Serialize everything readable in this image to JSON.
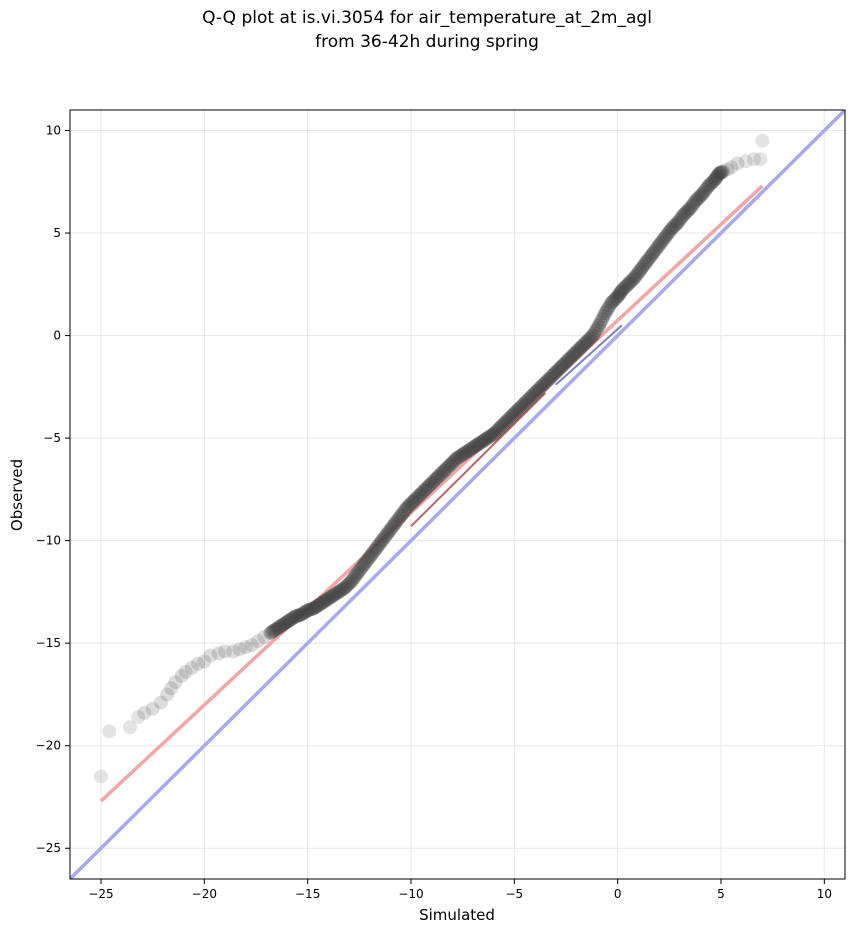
{
  "chart_data": {
    "type": "scatter",
    "title": "Q-Q plot at is.vi.3054 for air_temperature_at_2m_agl",
    "subtitle": "from 36-42h during spring",
    "xlabel": "Simulated",
    "ylabel": "Observed",
    "xlim": [
      -26.5,
      11
    ],
    "ylim": [
      -26.5,
      11
    ],
    "xticks": [
      -25,
      -20,
      -15,
      -10,
      -5,
      0,
      5,
      10
    ],
    "yticks": [
      -25,
      -20,
      -15,
      -10,
      -5,
      0,
      5,
      10
    ],
    "grid": true,
    "colors": {
      "points": "#404040",
      "fit_line": "#f4a6a6",
      "identity_line": "#a8a8f4",
      "dense_fit": "#8b0000",
      "dense_blue": "#00008b"
    },
    "quantile_points": {
      "x": [
        -25.0,
        -24.6,
        -23.6,
        -23.2,
        -22.9,
        -22.5,
        -22.1,
        -21.8,
        -21.6,
        -21.4,
        -21.1,
        -20.9,
        -20.6,
        -20.3,
        -20.0,
        -19.7,
        -19.3,
        -19.0,
        -18.6,
        -18.3,
        -18.0,
        -17.7,
        -17.4,
        -17.1,
        -16.8,
        -16.5,
        -16.2,
        -15.9,
        -15.6,
        -15.3,
        -15.0,
        -14.7,
        -14.4,
        -14.1,
        -13.8,
        -13.5,
        -13.2,
        -12.9,
        -12.6,
        -12.3,
        -12.0,
        -11.7,
        -11.4,
        -11.1,
        -10.8,
        -10.5,
        -10.2,
        -9.9,
        -9.6,
        -9.3,
        -9.0,
        -8.7,
        -8.4,
        -8.1,
        -7.8,
        -7.5,
        -7.2,
        -6.9,
        -6.6,
        -6.3,
        -6.0,
        -5.7,
        -5.4,
        -5.1,
        -4.8,
        -4.5,
        -4.2,
        -3.9,
        -3.6,
        -3.3,
        -3.0,
        -2.7,
        -2.4,
        -2.1,
        -1.8,
        -1.5,
        -1.2,
        -0.9,
        -0.6,
        -0.3,
        0.0,
        0.2,
        0.5,
        0.8,
        1.1,
        1.4,
        1.7,
        2.0,
        2.3,
        2.6,
        2.9,
        3.2,
        3.5,
        3.8,
        4.1,
        4.4,
        4.7,
        4.9,
        5.1,
        5.3,
        5.5,
        5.8,
        6.2,
        6.6,
        6.9,
        7.0
      ],
      "y": [
        -21.5,
        -19.3,
        -19.1,
        -18.6,
        -18.4,
        -18.2,
        -17.9,
        -17.5,
        -17.2,
        -16.9,
        -16.6,
        -16.4,
        -16.2,
        -16.0,
        -15.9,
        -15.6,
        -15.5,
        -15.4,
        -15.4,
        -15.3,
        -15.2,
        -15.1,
        -14.9,
        -14.7,
        -14.5,
        -14.3,
        -14.1,
        -13.9,
        -13.7,
        -13.6,
        -13.4,
        -13.3,
        -13.1,
        -12.9,
        -12.7,
        -12.5,
        -12.3,
        -12.0,
        -11.6,
        -11.2,
        -10.8,
        -10.4,
        -10.0,
        -9.6,
        -9.2,
        -8.8,
        -8.4,
        -8.1,
        -7.8,
        -7.5,
        -7.2,
        -6.9,
        -6.6,
        -6.3,
        -6.0,
        -5.8,
        -5.6,
        -5.4,
        -5.2,
        -5.0,
        -4.8,
        -4.5,
        -4.2,
        -3.9,
        -3.6,
        -3.3,
        -3.0,
        -2.7,
        -2.4,
        -2.1,
        -1.8,
        -1.5,
        -1.2,
        -0.9,
        -0.6,
        -0.3,
        0.0,
        0.5,
        1.1,
        1.6,
        1.9,
        2.2,
        2.5,
        2.8,
        3.2,
        3.6,
        4.0,
        4.4,
        4.8,
        5.2,
        5.5,
        5.9,
        6.2,
        6.6,
        6.9,
        7.3,
        7.6,
        7.9,
        8.0,
        8.1,
        8.2,
        8.4,
        8.5,
        8.6,
        8.6,
        9.5
      ]
    },
    "fit_line": {
      "x": [
        -25.0,
        7.0
      ],
      "y": [
        -22.7,
        7.3
      ]
    },
    "identity_line": {
      "x": [
        -26.5,
        11.0
      ],
      "y": [
        -26.5,
        11.0
      ]
    }
  }
}
